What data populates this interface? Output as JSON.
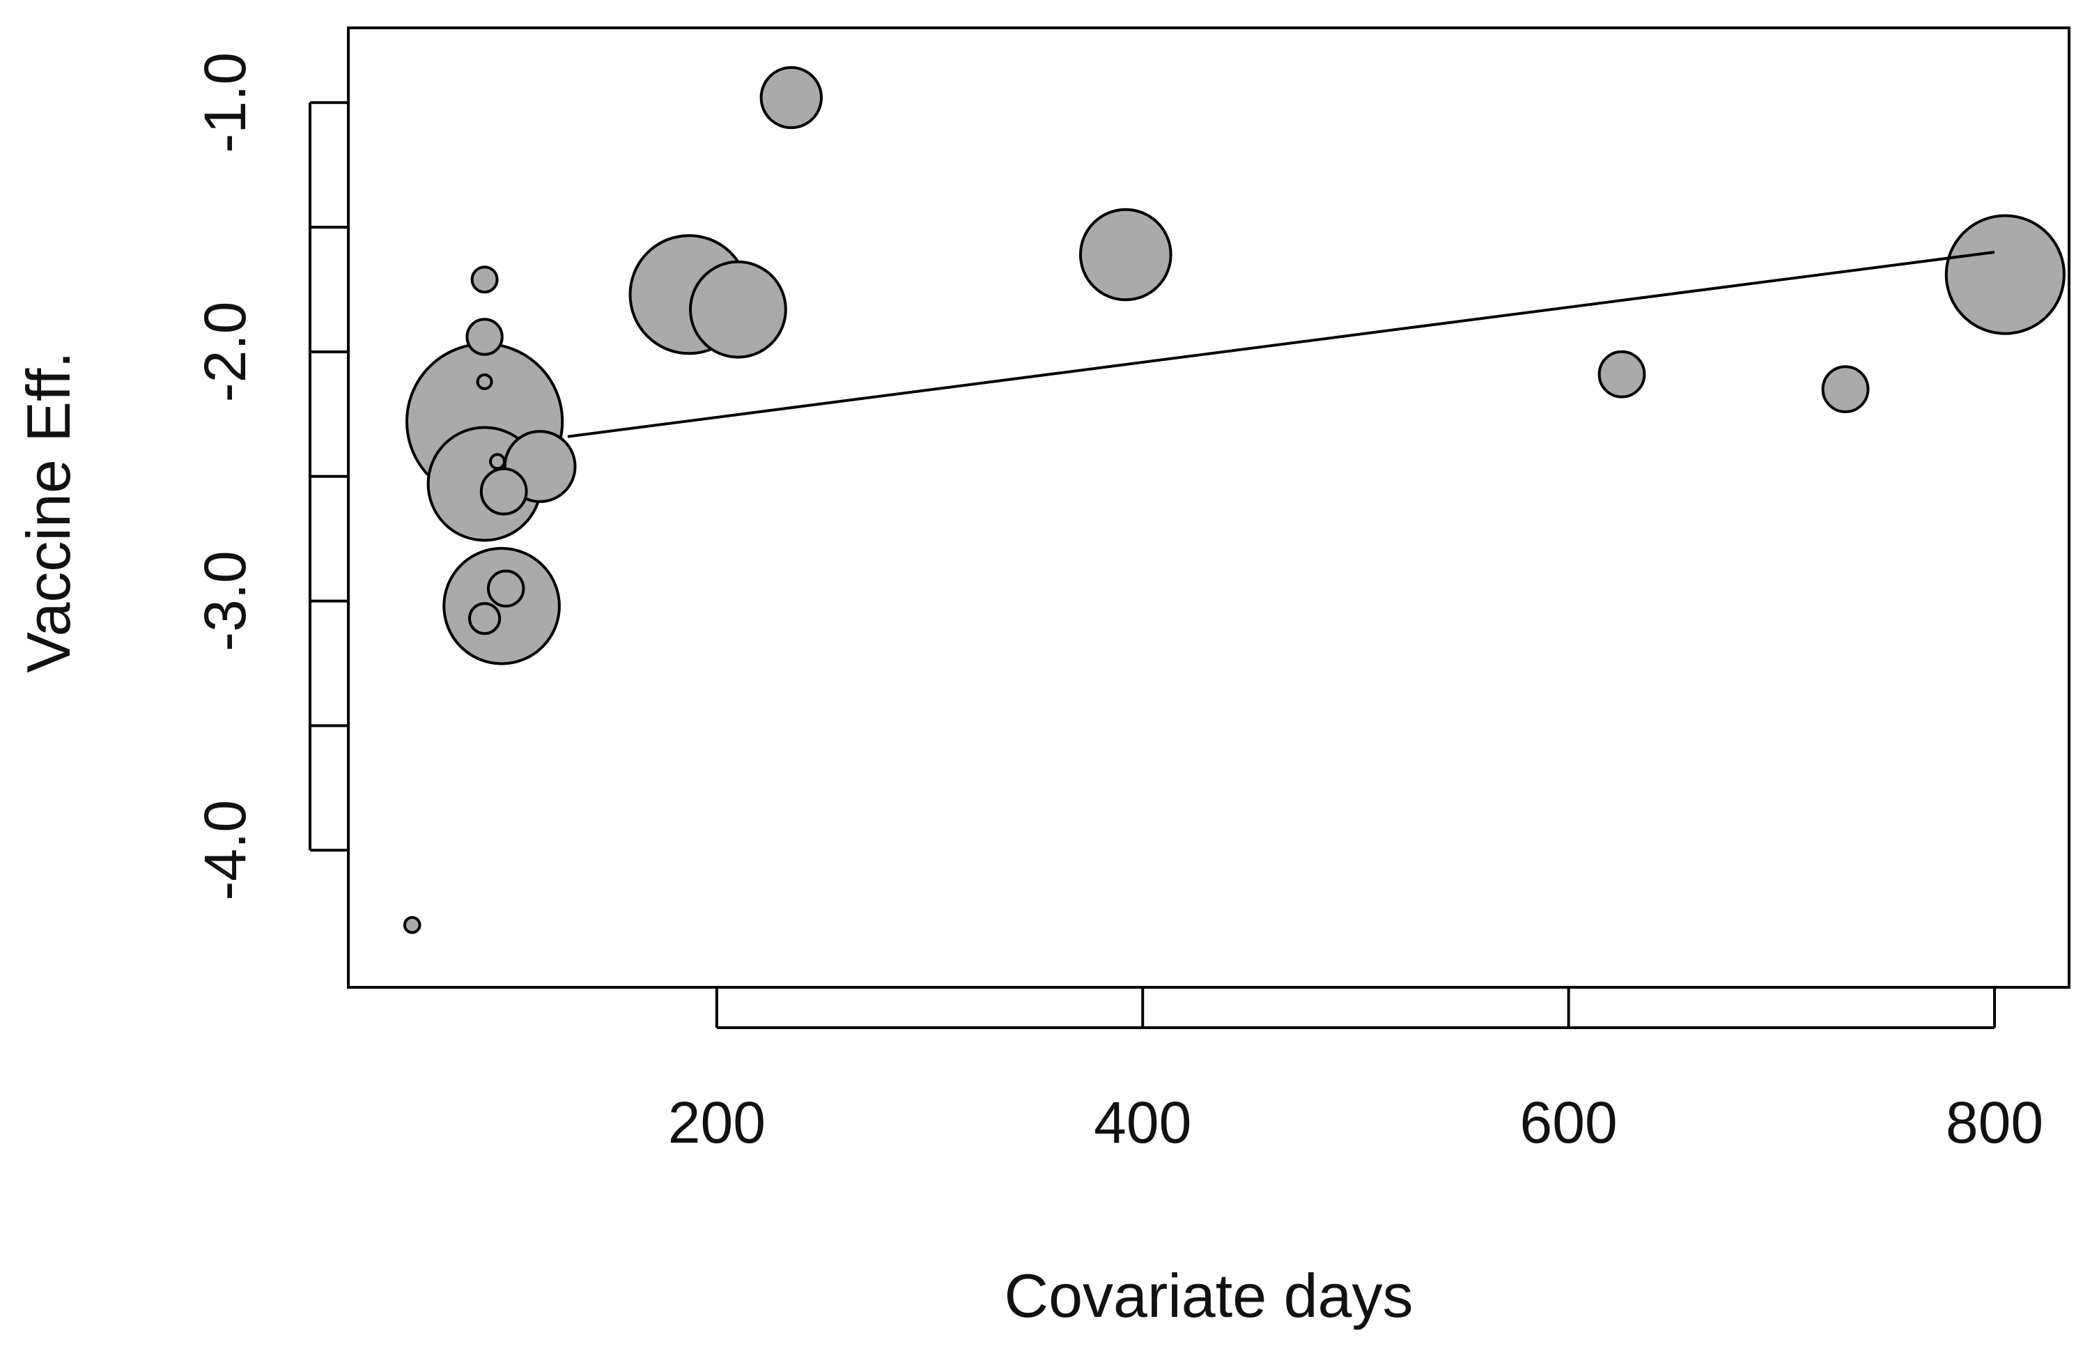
{
  "chart_data": {
    "type": "scatter",
    "title": "",
    "xlabel": "Covariate days",
    "ylabel": "Vaccine Eff.",
    "xlim": [
      27,
      835
    ],
    "ylim": [
      -4.55,
      -0.7
    ],
    "x_ticks": [
      200,
      400,
      600,
      800
    ],
    "y_ticks": [
      -1.0,
      -1.5,
      -2.0,
      -2.5,
      -3.0,
      -3.5,
      -4.0
    ],
    "y_tick_labels": [
      {
        "value": -1.0,
        "label": "-1.0"
      },
      {
        "value": -2.0,
        "label": "-2.0"
      },
      {
        "value": -3.0,
        "label": "-3.0"
      },
      {
        "value": -4.0,
        "label": "-4.0"
      }
    ],
    "x_tick_labels": [
      {
        "value": 200,
        "label": "200"
      },
      {
        "value": 400,
        "label": "400"
      },
      {
        "value": 600,
        "label": "600"
      },
      {
        "value": 800,
        "label": "800"
      }
    ],
    "grid": false,
    "point_fill": "#aaaaaa",
    "point_stroke": "#000000",
    "line_color": "#000000",
    "points": [
      {
        "x": 57,
        "y": -4.3,
        "weight": 0.06
      },
      {
        "x": 91,
        "y": -1.71,
        "weight": 0.1
      },
      {
        "x": 91,
        "y": -1.94,
        "weight": 0.14
      },
      {
        "x": 91,
        "y": -2.12,
        "weight": 0.05
      },
      {
        "x": 91,
        "y": -2.28,
        "weight": 0.62
      },
      {
        "x": 91,
        "y": -2.53,
        "weight": 0.45
      },
      {
        "x": 97,
        "y": -2.44,
        "weight": 0.05
      },
      {
        "x": 100,
        "y": -2.56,
        "weight": 0.18
      },
      {
        "x": 117,
        "y": -2.46,
        "weight": 0.28
      },
      {
        "x": 99,
        "y": -3.02,
        "weight": 0.46
      },
      {
        "x": 101,
        "y": -2.95,
        "weight": 0.14
      },
      {
        "x": 91,
        "y": -3.07,
        "weight": 0.12
      },
      {
        "x": 187,
        "y": -1.77,
        "weight": 0.47
      },
      {
        "x": 210,
        "y": -1.83,
        "weight": 0.38
      },
      {
        "x": 235,
        "y": -0.98,
        "weight": 0.24
      },
      {
        "x": 392,
        "y": -1.61,
        "weight": 0.36
      },
      {
        "x": 625,
        "y": -2.09,
        "weight": 0.18
      },
      {
        "x": 730,
        "y": -2.15,
        "weight": 0.18
      },
      {
        "x": 805,
        "y": -1.69,
        "weight": 0.47
      }
    ],
    "regression_line": {
      "x1": 130,
      "y1": -2.34,
      "x2": 800,
      "y2": -1.6
    }
  }
}
